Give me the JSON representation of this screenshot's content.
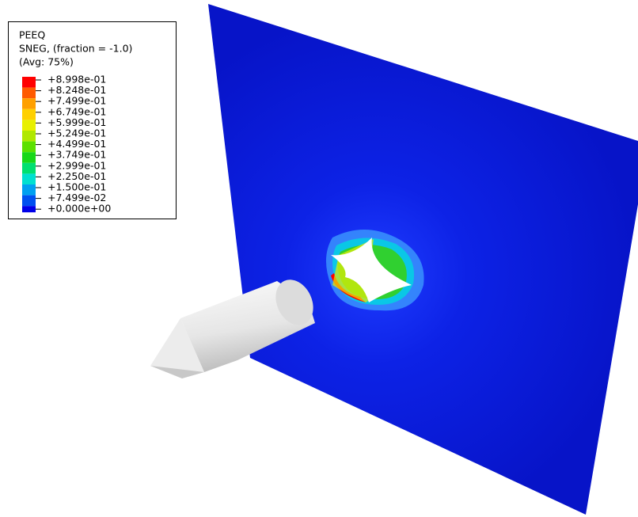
{
  "legend": {
    "title": [
      "PEEQ",
      "SNEG, (fraction = -1.0)",
      "(Avg: 75%)"
    ],
    "labels": [
      "+8.998e-01",
      "+8.248e-01",
      "+7.499e-01",
      "+6.749e-01",
      "+5.999e-01",
      "+5.249e-01",
      "+4.499e-01",
      "+3.749e-01",
      "+2.999e-01",
      "+2.250e-01",
      "+1.500e-01",
      "+7.499e-02",
      "+0.000e+00"
    ],
    "band_colors": [
      "#ff0000",
      "#ff5a00",
      "#ffa000",
      "#ffd000",
      "#e8f000",
      "#b0e800",
      "#5ce000",
      "#18d818",
      "#00e070",
      "#00e0d0",
      "#00a0f0",
      "#0050f0"
    ]
  }
}
